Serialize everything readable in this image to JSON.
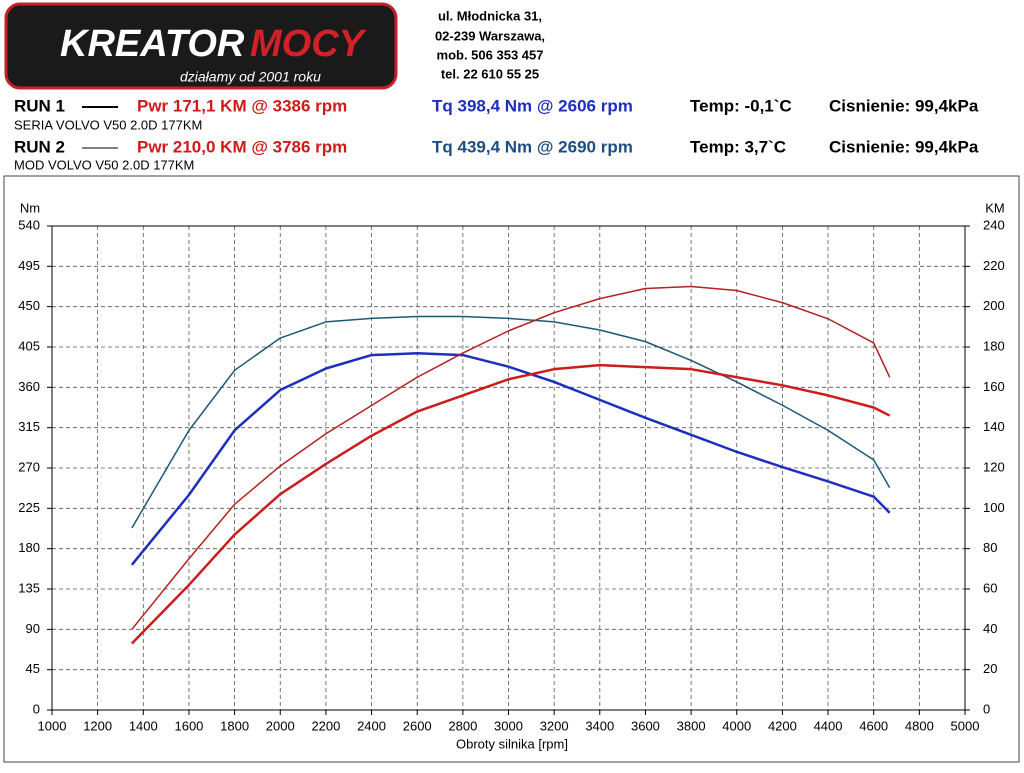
{
  "header": {
    "logo_main": "KREATOR",
    "logo_accent": "MOCY",
    "slogan": "działamy od 2001 roku",
    "address": [
      "ul. Młodnicka 31,",
      "02-239  Warszawa,",
      "mob.  506 353 457",
      "tel.  22 610 55 25"
    ]
  },
  "runs": [
    {
      "label": "RUN 1",
      "power": "Pwr  171,1 KM @ 3386 rpm",
      "torque": "Tq 398,4 Nm @ 2606 rpm",
      "temp": "Temp: -0,1`C",
      "pressure": "Cisnienie: 99,4kPa",
      "vehicle": "SERIA VOLVO V50 2.0D 177KM"
    },
    {
      "label": "RUN 2",
      "power": "Pwr  210,0 KM @ 3786 rpm",
      "torque": "Tq 439,4 Nm @ 2690 rpm",
      "temp": "Temp: 3,7`C",
      "pressure": "Cisnienie: 99,4kPa",
      "vehicle": "MOD VOLVO V50 2.0D 177KM"
    }
  ],
  "chart_data": {
    "type": "line",
    "x_label": "Obroty silnika [rpm]",
    "y_label": "Nm",
    "y2_label": "KM",
    "x": [
      1350,
      1600,
      1800,
      2000,
      2200,
      2400,
      2600,
      2800,
      3000,
      3200,
      3400,
      3600,
      3800,
      4000,
      4200,
      4400,
      4600,
      4670
    ],
    "xlim": [
      1000,
      5000
    ],
    "xticks": [
      1000,
      1200,
      1400,
      1600,
      1800,
      2000,
      2200,
      2400,
      2600,
      2800,
      3000,
      3200,
      3400,
      3600,
      3800,
      4000,
      4200,
      4400,
      4600,
      4800,
      5000
    ],
    "ylim": [
      0,
      540
    ],
    "yticks": [
      0,
      45,
      90,
      135,
      180,
      225,
      270,
      315,
      360,
      405,
      450,
      495,
      540
    ],
    "y2lim": [
      0,
      240
    ],
    "y2ticks": [
      0,
      20,
      40,
      60,
      80,
      100,
      120,
      140,
      160,
      180,
      200,
      220,
      240
    ],
    "grid": true,
    "series": [
      {
        "color": "#1e2fc0",
        "line_width": 2.5,
        "values": [
          162,
          240,
          312,
          357,
          381,
          396,
          398,
          396,
          383,
          366,
          346,
          326,
          307,
          288,
          271,
          255,
          238,
          220
        ]
      },
      {
        "color": "#1c5876",
        "line_width": 1.5,
        "values": [
          203,
          312,
          379,
          415,
          433,
          437,
          439,
          439,
          437,
          433,
          424,
          411,
          390,
          366,
          340,
          312,
          279,
          248
        ]
      },
      {
        "color": "#cc1c1c",
        "line_width": 2.5,
        "axis": "y2",
        "values": [
          33,
          62,
          87,
          107,
          122,
          136,
          148,
          156,
          164,
          169,
          171,
          170,
          169,
          165,
          161,
          156,
          150,
          146
        ]
      },
      {
        "color": "#b52020",
        "line_width": 1.5,
        "axis": "y2",
        "values": [
          40,
          75,
          102,
          121,
          137,
          151,
          165,
          177,
          188,
          197,
          204,
          209,
          210,
          208,
          202,
          194,
          182,
          165
        ]
      }
    ]
  }
}
